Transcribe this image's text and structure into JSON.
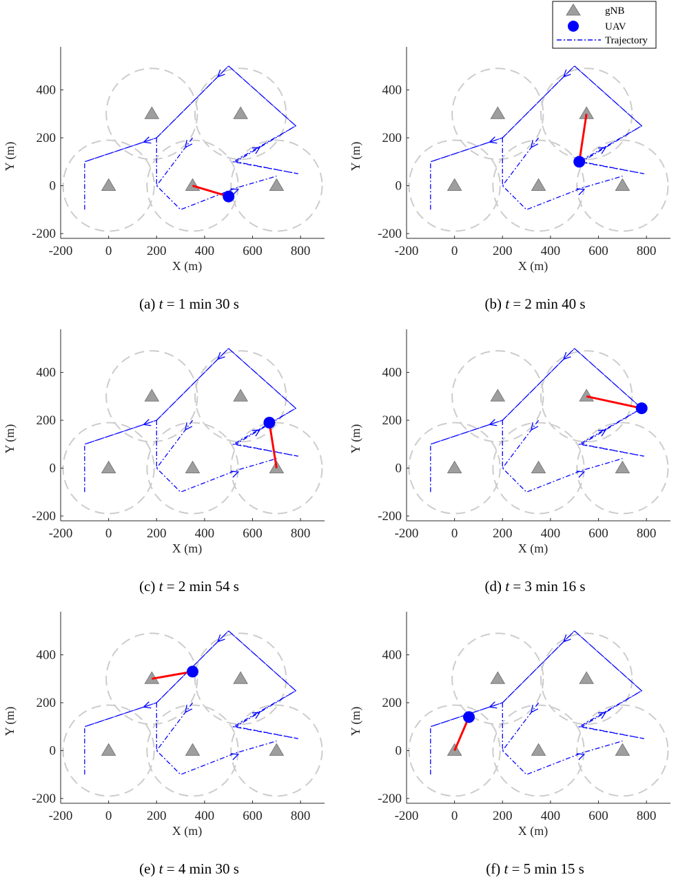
{
  "figure": {
    "xlabel": "X (m)",
    "ylabel": "Y (m)",
    "xticks": [
      "-200",
      "0",
      "200",
      "400",
      "600",
      "800"
    ],
    "yticks": [
      "-200",
      "0",
      "200",
      "400"
    ],
    "colors": {
      "gnb": "#9e9e9e",
      "uav": "#0000ff",
      "trajectory": "#0000ff",
      "link": "#ff0000",
      "coverage": "#cccccc",
      "axis": "#262626"
    },
    "legend": {
      "position": "top-right",
      "entries": [
        {
          "label": "gNB",
          "marker": "triangle"
        },
        {
          "label": "UAV",
          "marker": "circle"
        },
        {
          "label": "Trajectory",
          "marker": "dash-dot-line"
        }
      ]
    }
  },
  "chart_data": [
    {
      "type": "scatter",
      "panel_label": "(a)",
      "caption_prefix": "(a) ",
      "caption_var": "t",
      "caption_suffix": " = 1 min 30 s",
      "xlim": [
        -200,
        900
      ],
      "ylim": [
        -220,
        580
      ],
      "gnbs": [
        [
          0,
          0
        ],
        [
          350,
          0
        ],
        [
          700,
          0
        ],
        [
          180,
          300
        ],
        [
          550,
          300
        ]
      ],
      "coverage_radius": 190,
      "trajectory": [
        [
          -100,
          -100
        ],
        [
          -100,
          100
        ],
        [
          200,
          200
        ],
        [
          500,
          500
        ],
        [
          780,
          250
        ],
        [
          530,
          100
        ],
        [
          790,
          50
        ],
        [
          520,
          100
        ],
        [
          780,
          250
        ],
        [
          500,
          500
        ],
        [
          200,
          200
        ],
        [
          -100,
          100
        ]
      ],
      "trajectory_loop": [
        [
          200,
          200
        ],
        [
          200,
          0
        ],
        [
          300,
          -100
        ],
        [
          530,
          -10
        ],
        [
          700,
          40
        ]
      ],
      "uav": [
        500,
        -45
      ],
      "serving_gnb": [
        350,
        0
      ]
    },
    {
      "type": "scatter",
      "panel_label": "(b)",
      "caption_prefix": "(b) ",
      "caption_var": "t",
      "caption_suffix": " = 2 min 40 s",
      "xlim": [
        -200,
        900
      ],
      "ylim": [
        -220,
        580
      ],
      "gnbs": [
        [
          0,
          0
        ],
        [
          350,
          0
        ],
        [
          700,
          0
        ],
        [
          180,
          300
        ],
        [
          550,
          300
        ]
      ],
      "coverage_radius": 190,
      "trajectory": [
        [
          -100,
          -100
        ],
        [
          -100,
          100
        ],
        [
          200,
          200
        ],
        [
          500,
          500
        ],
        [
          780,
          250
        ],
        [
          530,
          100
        ],
        [
          790,
          50
        ],
        [
          520,
          100
        ],
        [
          780,
          250
        ],
        [
          500,
          500
        ],
        [
          200,
          200
        ],
        [
          -100,
          100
        ]
      ],
      "trajectory_loop": [
        [
          200,
          200
        ],
        [
          200,
          0
        ],
        [
          300,
          -100
        ],
        [
          530,
          -10
        ],
        [
          700,
          40
        ]
      ],
      "uav": [
        520,
        100
      ],
      "serving_gnb": [
        550,
        300
      ]
    },
    {
      "type": "scatter",
      "panel_label": "(c)",
      "caption_prefix": "(c) ",
      "caption_var": "t",
      "caption_suffix": " = 2 min 54 s",
      "xlim": [
        -200,
        900
      ],
      "ylim": [
        -220,
        580
      ],
      "gnbs": [
        [
          0,
          0
        ],
        [
          350,
          0
        ],
        [
          700,
          0
        ],
        [
          180,
          300
        ],
        [
          550,
          300
        ]
      ],
      "coverage_radius": 190,
      "trajectory": [
        [
          -100,
          -100
        ],
        [
          -100,
          100
        ],
        [
          200,
          200
        ],
        [
          500,
          500
        ],
        [
          780,
          250
        ],
        [
          530,
          100
        ],
        [
          790,
          50
        ],
        [
          520,
          100
        ],
        [
          780,
          250
        ],
        [
          500,
          500
        ],
        [
          200,
          200
        ],
        [
          -100,
          100
        ]
      ],
      "trajectory_loop": [
        [
          200,
          200
        ],
        [
          200,
          0
        ],
        [
          300,
          -100
        ],
        [
          530,
          -10
        ],
        [
          700,
          40
        ]
      ],
      "uav": [
        670,
        190
      ],
      "serving_gnb": [
        700,
        0
      ]
    },
    {
      "type": "scatter",
      "panel_label": "(d)",
      "caption_prefix": "(d) ",
      "caption_var": "t",
      "caption_suffix": " = 3 min 16 s",
      "xlim": [
        -200,
        900
      ],
      "ylim": [
        -220,
        580
      ],
      "gnbs": [
        [
          0,
          0
        ],
        [
          350,
          0
        ],
        [
          700,
          0
        ],
        [
          180,
          300
        ],
        [
          550,
          300
        ]
      ],
      "coverage_radius": 190,
      "trajectory": [
        [
          -100,
          -100
        ],
        [
          -100,
          100
        ],
        [
          200,
          200
        ],
        [
          500,
          500
        ],
        [
          780,
          250
        ],
        [
          530,
          100
        ],
        [
          790,
          50
        ],
        [
          520,
          100
        ],
        [
          780,
          250
        ],
        [
          500,
          500
        ],
        [
          200,
          200
        ],
        [
          -100,
          100
        ]
      ],
      "trajectory_loop": [
        [
          200,
          200
        ],
        [
          200,
          0
        ],
        [
          300,
          -100
        ],
        [
          530,
          -10
        ],
        [
          700,
          40
        ]
      ],
      "uav": [
        780,
        250
      ],
      "serving_gnb": [
        550,
        300
      ]
    },
    {
      "type": "scatter",
      "panel_label": "(e)",
      "caption_prefix": "(e) ",
      "caption_var": "t",
      "caption_suffix": " = 4 min 30 s",
      "xlim": [
        -200,
        900
      ],
      "ylim": [
        -220,
        580
      ],
      "gnbs": [
        [
          0,
          0
        ],
        [
          350,
          0
        ],
        [
          700,
          0
        ],
        [
          180,
          300
        ],
        [
          550,
          300
        ]
      ],
      "coverage_radius": 190,
      "trajectory": [
        [
          -100,
          -100
        ],
        [
          -100,
          100
        ],
        [
          200,
          200
        ],
        [
          500,
          500
        ],
        [
          780,
          250
        ],
        [
          530,
          100
        ],
        [
          790,
          50
        ],
        [
          520,
          100
        ],
        [
          780,
          250
        ],
        [
          500,
          500
        ],
        [
          200,
          200
        ],
        [
          -100,
          100
        ]
      ],
      "trajectory_loop": [
        [
          200,
          200
        ],
        [
          200,
          0
        ],
        [
          300,
          -100
        ],
        [
          530,
          -10
        ],
        [
          700,
          40
        ]
      ],
      "uav": [
        350,
        330
      ],
      "serving_gnb": [
        180,
        300
      ]
    },
    {
      "type": "scatter",
      "panel_label": "(f)",
      "caption_prefix": "(f) ",
      "caption_var": "t",
      "caption_suffix": " = 5 min 15 s",
      "xlim": [
        -200,
        900
      ],
      "ylim": [
        -220,
        580
      ],
      "gnbs": [
        [
          0,
          0
        ],
        [
          350,
          0
        ],
        [
          700,
          0
        ],
        [
          180,
          300
        ],
        [
          550,
          300
        ]
      ],
      "coverage_radius": 190,
      "trajectory": [
        [
          -100,
          -100
        ],
        [
          -100,
          100
        ],
        [
          200,
          200
        ],
        [
          500,
          500
        ],
        [
          780,
          250
        ],
        [
          530,
          100
        ],
        [
          790,
          50
        ],
        [
          520,
          100
        ],
        [
          780,
          250
        ],
        [
          500,
          500
        ],
        [
          200,
          200
        ],
        [
          -100,
          100
        ]
      ],
      "trajectory_loop": [
        [
          200,
          200
        ],
        [
          200,
          0
        ],
        [
          300,
          -100
        ],
        [
          530,
          -10
        ],
        [
          700,
          40
        ]
      ],
      "uav": [
        60,
        140
      ],
      "serving_gnb": [
        0,
        0
      ]
    }
  ]
}
